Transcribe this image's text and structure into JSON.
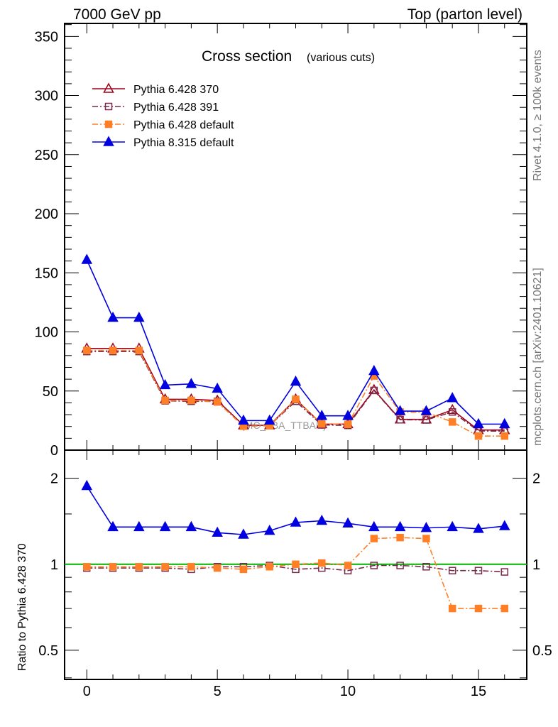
{
  "header": {
    "left": "7000 GeV pp",
    "right": "Top (parton level)"
  },
  "side_labels": {
    "rivet": "Rivet 4.1.0, ≥ 100k events",
    "mcplots": "mcplots.cern.ch [arXiv:2401.10621]"
  },
  "watermark": "(MC_FBA_TTBAR)",
  "chart_data": [
    {
      "type": "line",
      "title": "Cross section",
      "subtitle": "(various cuts)",
      "xlabel": "",
      "ylabel": "",
      "xlim": [
        -0.85,
        16.85
      ],
      "ylim": [
        0,
        361
      ],
      "yticks": [
        0,
        50,
        100,
        150,
        200,
        250,
        300,
        350
      ],
      "xticks": [
        0,
        5,
        10,
        15
      ],
      "legend_position": "top-left",
      "x": [
        0,
        1,
        2,
        3,
        4,
        5,
        6,
        7,
        8,
        9,
        10,
        11,
        12,
        13,
        14,
        15,
        16
      ],
      "series": [
        {
          "name": "Pythia 6.428 370",
          "color": "#a00018",
          "marker": "open-triangle",
          "dash": "solid",
          "values": [
            86,
            86,
            86,
            43,
            43,
            42,
            21,
            21,
            43,
            22,
            22,
            51,
            26,
            26,
            34,
            17,
            17
          ]
        },
        {
          "name": "Pythia 6.428 391",
          "color": "#7a2a4a",
          "marker": "open-square",
          "dash": "dashdot",
          "values": [
            83.4,
            83.4,
            83.4,
            41.7,
            41.3,
            41.2,
            20.6,
            20.8,
            41.3,
            21.3,
            20.9,
            50.5,
            25.7,
            25.5,
            32.3,
            16.2,
            16
          ]
        },
        {
          "name": "Pythia 6.428 default",
          "color": "#ff7f27",
          "marker": "filled-square",
          "dash": "dashdot",
          "values": [
            84.3,
            84.3,
            84.3,
            42.1,
            42.1,
            40.7,
            20.2,
            20.6,
            43,
            22.2,
            21.8,
            62.7,
            32.2,
            32,
            23.8,
            11.9,
            11.9
          ]
        },
        {
          "name": "Pythia 8.315 default",
          "color": "#0000e0",
          "marker": "filled-triangle",
          "dash": "solid",
          "values": [
            161,
            112,
            112,
            55,
            56,
            52,
            25,
            25,
            58,
            29,
            29,
            67,
            33,
            33,
            44,
            22,
            22
          ]
        }
      ]
    },
    {
      "type": "line",
      "ylabel": "Ratio to Pythia 6.428 370",
      "yscale": "log",
      "ylim": [
        0.395,
        2.51
      ],
      "yticks": [
        0.5,
        1,
        2
      ],
      "xticks": [
        0,
        5,
        10,
        15
      ],
      "x": [
        0,
        1,
        2,
        3,
        4,
        5,
        6,
        7,
        8,
        9,
        10,
        11,
        12,
        13,
        14,
        15,
        16
      ],
      "series": [
        {
          "name": "Pythia 6.428 370",
          "color": "#00b000",
          "values": [
            1,
            1,
            1,
            1,
            1,
            1,
            1,
            1,
            1,
            1,
            1,
            1,
            1,
            1,
            1,
            1,
            1
          ]
        },
        {
          "name": "Pythia 6.428 391",
          "values": [
            0.97,
            0.97,
            0.97,
            0.97,
            0.96,
            0.98,
            0.98,
            0.99,
            0.96,
            0.97,
            0.95,
            0.99,
            0.99,
            0.98,
            0.95,
            0.95,
            0.94
          ]
        },
        {
          "name": "Pythia 6.428 default",
          "values": [
            0.98,
            0.98,
            0.98,
            0.98,
            0.98,
            0.97,
            0.96,
            0.98,
            1.0,
            1.01,
            0.99,
            1.23,
            1.24,
            1.23,
            0.7,
            0.7,
            0.7
          ]
        },
        {
          "name": "Pythia 8.315 default",
          "values": [
            1.88,
            1.35,
            1.35,
            1.35,
            1.35,
            1.29,
            1.27,
            1.31,
            1.4,
            1.42,
            1.39,
            1.35,
            1.35,
            1.34,
            1.35,
            1.33,
            1.36
          ]
        }
      ]
    }
  ]
}
